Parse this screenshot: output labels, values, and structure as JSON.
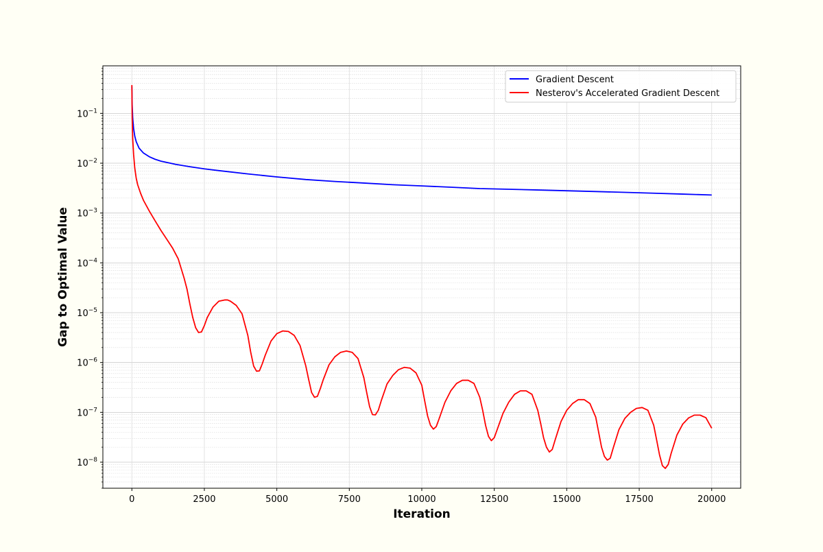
{
  "chart_data": {
    "type": "line",
    "xlabel": "Iteration",
    "ylabel": "Gap to Optimal Value",
    "xlim": [
      -1000,
      21000
    ],
    "ylim": [
      3e-09,
      0.9
    ],
    "yscale": "log",
    "grid": true,
    "legend_position": "top-right",
    "x_ticks": [
      0,
      2500,
      5000,
      7500,
      10000,
      12500,
      15000,
      17500,
      20000
    ],
    "x_tick_labels": [
      "0",
      "2500",
      "5000",
      "7500",
      "10000",
      "12500",
      "15000",
      "17500",
      "20000"
    ],
    "y_ticks": [
      1e-08,
      1e-07,
      1e-06,
      1e-05,
      0.0001,
      0.001,
      0.01,
      0.1
    ],
    "y_tick_labels": [
      {
        "base": "10",
        "exp": "−8"
      },
      {
        "base": "10",
        "exp": "−7"
      },
      {
        "base": "10",
        "exp": "−6"
      },
      {
        "base": "10",
        "exp": "−5"
      },
      {
        "base": "10",
        "exp": "−4"
      },
      {
        "base": "10",
        "exp": "−3"
      },
      {
        "base": "10",
        "exp": "−2"
      },
      {
        "base": "10",
        "exp": "−1"
      }
    ],
    "series": [
      {
        "name": "Gradient Descent",
        "color": "#0000ff",
        "x": [
          0,
          10,
          30,
          60,
          100,
          150,
          250,
          400,
          600,
          800,
          1000,
          1500,
          2000,
          2500,
          3000,
          4000,
          5000,
          6000,
          7000,
          8000,
          9000,
          10000,
          11000,
          12000,
          13000,
          14000,
          15000,
          16000,
          17000,
          18000,
          19000,
          20000
        ],
        "y": [
          0.35,
          0.15,
          0.08,
          0.05,
          0.035,
          0.027,
          0.02,
          0.016,
          0.0135,
          0.012,
          0.011,
          0.0095,
          0.0085,
          0.0077,
          0.0071,
          0.0061,
          0.0053,
          0.0047,
          0.0043,
          0.004,
          0.0037,
          0.0035,
          0.0033,
          0.0031,
          0.003,
          0.0029,
          0.0028,
          0.0027,
          0.0026,
          0.0025,
          0.0024,
          0.0023
        ]
      },
      {
        "name": "Nesterov's Accelerated Gradient Descent",
        "color": "#ff0000",
        "x": [
          0,
          10,
          30,
          60,
          100,
          150,
          200,
          300,
          400,
          600,
          800,
          1000,
          1200,
          1400,
          1600,
          1800,
          1900,
          2000,
          2100,
          2200,
          2300,
          2400,
          2500,
          2600,
          2800,
          3000,
          3200,
          3300,
          3400,
          3600,
          3800,
          4000,
          4100,
          4200,
          4300,
          4400,
          4500,
          4600,
          4800,
          5000,
          5200,
          5400,
          5600,
          5800,
          6000,
          6100,
          6200,
          6300,
          6400,
          6500,
          6600,
          6800,
          7000,
          7200,
          7400,
          7600,
          7800,
          8000,
          8100,
          8200,
          8300,
          8400,
          8500,
          8600,
          8800,
          9000,
          9200,
          9400,
          9600,
          9800,
          10000,
          10100,
          10200,
          10300,
          10400,
          10500,
          10600,
          10800,
          11000,
          11200,
          11400,
          11600,
          11800,
          12000,
          12100,
          12200,
          12300,
          12400,
          12500,
          12600,
          12800,
          13000,
          13200,
          13400,
          13600,
          13800,
          14000,
          14100,
          14200,
          14300,
          14400,
          14500,
          14600,
          14800,
          15000,
          15200,
          15400,
          15600,
          15800,
          16000,
          16100,
          16200,
          16300,
          16400,
          16500,
          16600,
          16800,
          17000,
          17200,
          17400,
          17600,
          17800,
          18000,
          18100,
          18200,
          18300,
          18400,
          18500,
          18600,
          18800,
          19000,
          19200,
          19400,
          19600,
          19800,
          20000
        ],
        "y": [
          0.37,
          0.08,
          0.03,
          0.015,
          0.008,
          0.005,
          0.0037,
          0.0025,
          0.0018,
          0.0011,
          0.0007,
          0.00045,
          0.0003,
          0.0002,
          0.00012,
          5e-05,
          3e-05,
          1.5e-05,
          8e-06,
          5e-06,
          4e-06,
          4.1e-06,
          5.5e-06,
          8e-06,
          1.3e-05,
          1.7e-05,
          1.8e-05,
          1.8e-05,
          1.7e-05,
          1.4e-05,
          9.5e-06,
          3.5e-06,
          1.6e-06,
          8.5e-07,
          6.7e-07,
          6.8e-07,
          9.5e-07,
          1.4e-06,
          2.7e-06,
          3.8e-06,
          4.3e-06,
          4.2e-06,
          3.5e-06,
          2.2e-06,
          8.5e-07,
          4.5e-07,
          2.5e-07,
          2e-07,
          2.1e-07,
          3e-07,
          4.5e-07,
          9e-07,
          1.3e-06,
          1.6e-06,
          1.7e-06,
          1.6e-06,
          1.2e-06,
          5e-07,
          2.5e-07,
          1.3e-07,
          9e-08,
          8.9e-08,
          1.1e-07,
          1.7e-07,
          3.7e-07,
          5.5e-07,
          7.2e-07,
          8e-07,
          7.7e-07,
          6.2e-07,
          3.5e-07,
          1.7e-07,
          8.5e-08,
          5.5e-08,
          4.6e-08,
          5.2e-08,
          7.5e-08,
          1.6e-07,
          2.7e-07,
          3.8e-07,
          4.4e-07,
          4.4e-07,
          3.8e-07,
          2e-07,
          1.1e-07,
          5.5e-08,
          3.3e-08,
          2.7e-08,
          3.1e-08,
          4.5e-08,
          9.5e-08,
          1.6e-07,
          2.3e-07,
          2.7e-07,
          2.7e-07,
          2.3e-07,
          1.1e-07,
          6e-08,
          3.1e-08,
          2e-08,
          1.6e-08,
          1.8e-08,
          2.8e-08,
          6.5e-08,
          1.1e-07,
          1.5e-07,
          1.8e-07,
          1.8e-07,
          1.5e-07,
          8e-08,
          4e-08,
          2e-08,
          1.3e-08,
          1.1e-08,
          1.2e-08,
          1.9e-08,
          4.5e-08,
          7.5e-08,
          1e-07,
          1.2e-07,
          1.25e-07,
          1.1e-07,
          5.5e-08,
          2.8e-08,
          1.4e-08,
          8.5e-09,
          7.5e-09,
          9e-09,
          1.5e-08,
          3.5e-08,
          5.8e-08,
          7.7e-08,
          8.8e-08,
          8.8e-08,
          7.8e-08,
          4.8e-08
        ]
      }
    ]
  }
}
